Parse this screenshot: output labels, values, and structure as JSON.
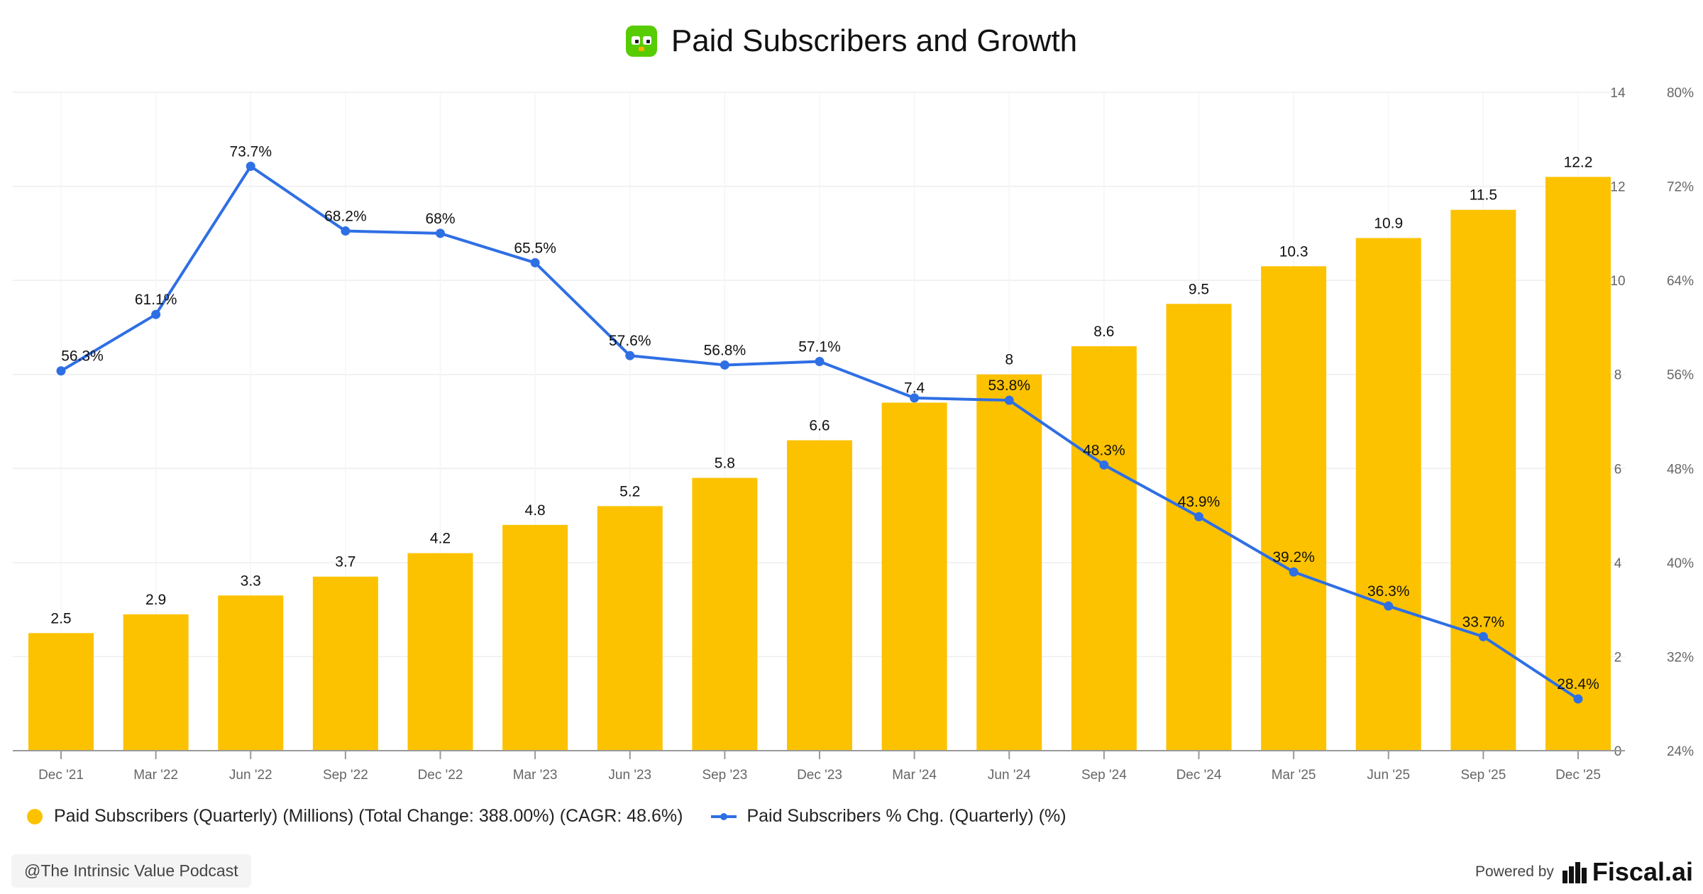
{
  "title": "Paid Subscribers and Growth",
  "logo_icon": "duolingo-owl-icon",
  "colors": {
    "bar": "#FCC200",
    "line": "#2F6FE4",
    "grid": "#EEEEEE",
    "axis": "#666666"
  },
  "chart_data": {
    "type": "bar+line",
    "categories": [
      "Dec '21",
      "Mar '22",
      "Jun '22",
      "Sep '22",
      "Dec '22",
      "Mar '23",
      "Jun '23",
      "Sep '23",
      "Dec '23",
      "Mar '24",
      "Jun '24",
      "Sep '24",
      "Dec '24",
      "Mar '25",
      "Jun '25",
      "Sep '25",
      "Dec '25"
    ],
    "series": [
      {
        "name": "Paid Subscribers (Quarterly) (Millions) (Total Change: 388.00%) (CAGR: 48.6%)",
        "type": "bar",
        "axis": "left",
        "values": [
          2.5,
          2.9,
          3.3,
          3.7,
          4.2,
          4.8,
          5.2,
          5.8,
          6.6,
          7.4,
          8,
          8.6,
          9.5,
          10.3,
          10.9,
          11.5,
          12.2
        ],
        "labels": [
          "2.5",
          "2.9",
          "3.3",
          "3.7",
          "4.2",
          "4.8",
          "5.2",
          "5.8",
          "6.6",
          "7.4",
          "8",
          "8.6",
          "9.5",
          "10.3",
          "10.9",
          "11.5",
          "12.2"
        ]
      },
      {
        "name": "Paid Subscribers % Chg. (Quarterly) (%)",
        "type": "line",
        "axis": "right",
        "values": [
          56.3,
          61.1,
          73.7,
          68.2,
          68,
          65.5,
          57.6,
          56.8,
          57.1,
          54,
          53.8,
          48.3,
          43.9,
          39.2,
          36.3,
          33.7,
          28.4
        ],
        "labels": [
          "56.3%",
          "61.1%",
          "73.7%",
          "68.2%",
          "68%",
          "65.5%",
          "57.6%",
          "56.8%",
          "57.1%",
          "",
          "53.8%",
          "48.3%",
          "43.9%",
          "39.2%",
          "36.3%",
          "33.7%",
          "28.4%"
        ]
      }
    ],
    "y_left": {
      "range": [
        0,
        14
      ],
      "ticks": [
        "0",
        "2",
        "4",
        "6",
        "8",
        "10",
        "12",
        "14"
      ],
      "tick_values": [
        0,
        2,
        4,
        6,
        8,
        10,
        12,
        14
      ]
    },
    "y_right": {
      "range": [
        24,
        80
      ],
      "ticks": [
        "24%",
        "32%",
        "40%",
        "48%",
        "56%",
        "64%",
        "72%",
        "80%"
      ],
      "tick_values": [
        24,
        32,
        40,
        48,
        56,
        64,
        72,
        80
      ]
    },
    "grid": true,
    "legend_position": "bottom-left"
  },
  "legend": {
    "bar_label": "Paid Subscribers (Quarterly) (Millions) (Total Change: 388.00%) (CAGR: 48.6%)",
    "line_label": "Paid Subscribers % Chg. (Quarterly) (%)"
  },
  "watermark": "@The Intrinsic Value Podcast",
  "footer": {
    "powered_by": "Powered by",
    "brand": "Fiscal.ai",
    "brand_icon": "fiscal-bars-icon"
  }
}
